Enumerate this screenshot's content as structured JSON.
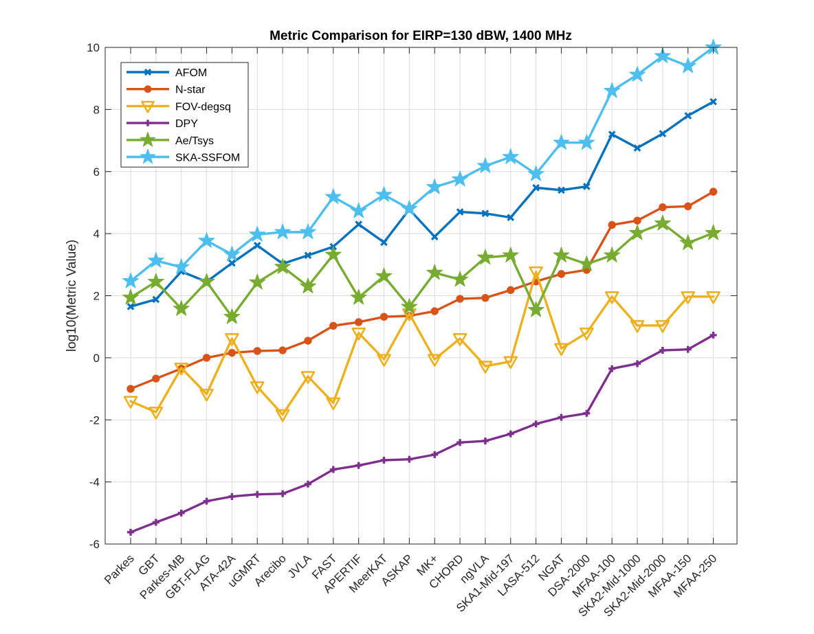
{
  "chart_data": {
    "type": "line",
    "title": "Metric Comparison for EIRP=130 dBW, 1400 MHz",
    "xlabel": "",
    "ylabel": "log10(Metric Value)",
    "ylim": [
      -6,
      10
    ],
    "yticks": [
      -6,
      -4,
      -2,
      0,
      2,
      4,
      6,
      8,
      10
    ],
    "grid": true,
    "legend_position": "top-left",
    "categories": [
      "Parkes",
      "GBT",
      "Parkes-MB",
      "GBT-FLAG",
      "ATA-42A",
      "uGMRT",
      "Arecibo",
      "JVLA",
      "FAST",
      "APERTIF",
      "MeerKAT",
      "ASKAP",
      "MK+",
      "CHORD",
      "ngVLA",
      "SKA1-Mid-197",
      "LASA-512",
      "NGAT",
      "DSA-2000",
      "MFAA-100",
      "SKA2-Mid-1000",
      "SKA2-Mid-2000",
      "MFAA-150",
      "MFAA-250"
    ],
    "series": [
      {
        "name": "AFOM",
        "color": "#0072BD",
        "marker": "x",
        "values": [
          1.65,
          1.88,
          2.78,
          2.45,
          3.05,
          3.62,
          3.03,
          3.3,
          3.58,
          4.3,
          3.72,
          4.78,
          3.9,
          4.7,
          4.65,
          4.52,
          5.48,
          5.4,
          5.52,
          7.2,
          6.76,
          7.22,
          7.8,
          8.25
        ]
      },
      {
        "name": "N-star",
        "color": "#D95319",
        "marker": "circle",
        "values": [
          -1.0,
          -0.67,
          -0.35,
          0.0,
          0.16,
          0.22,
          0.24,
          0.55,
          1.03,
          1.15,
          1.32,
          1.35,
          1.5,
          1.9,
          1.93,
          2.18,
          2.46,
          2.7,
          2.83,
          4.28,
          4.42,
          4.85,
          4.88,
          5.35
        ]
      },
      {
        "name": "FOV-degsq",
        "color": "#EDB120",
        "marker": "triangle-down",
        "values": [
          -1.4,
          -1.75,
          -0.33,
          -1.17,
          0.62,
          -0.93,
          -1.83,
          -0.6,
          -1.45,
          0.8,
          -0.05,
          1.42,
          -0.05,
          0.62,
          -0.27,
          -0.12,
          2.77,
          0.3,
          0.8,
          1.97,
          1.04,
          1.04,
          1.97,
          1.97
        ]
      },
      {
        "name": "DPY",
        "color": "#7E2F8E",
        "marker": "plus",
        "values": [
          -5.62,
          -5.3,
          -5.0,
          -4.62,
          -4.47,
          -4.4,
          -4.38,
          -4.07,
          -3.6,
          -3.47,
          -3.3,
          -3.27,
          -3.12,
          -2.73,
          -2.68,
          -2.45,
          -2.13,
          -1.92,
          -1.79,
          -0.35,
          -0.19,
          0.24,
          0.27,
          0.73
        ]
      },
      {
        "name": "Ae/Tsys",
        "color": "#77AC30",
        "marker": "star5",
        "values": [
          1.94,
          2.45,
          1.58,
          2.45,
          1.32,
          2.43,
          2.93,
          2.3,
          3.32,
          1.94,
          2.63,
          1.64,
          2.74,
          2.52,
          3.23,
          3.3,
          1.54,
          3.3,
          3.02,
          3.3,
          4.02,
          4.33,
          3.7,
          4.02
        ]
      },
      {
        "name": "SKA-SSFOM",
        "color": "#4DBEEE",
        "marker": "star5",
        "values": [
          2.47,
          3.13,
          2.92,
          3.77,
          3.33,
          3.97,
          4.05,
          4.05,
          5.18,
          4.73,
          5.25,
          4.8,
          5.5,
          5.75,
          6.18,
          6.47,
          5.92,
          6.93,
          6.93,
          8.6,
          9.12,
          9.72,
          9.4,
          10.0
        ]
      }
    ]
  }
}
